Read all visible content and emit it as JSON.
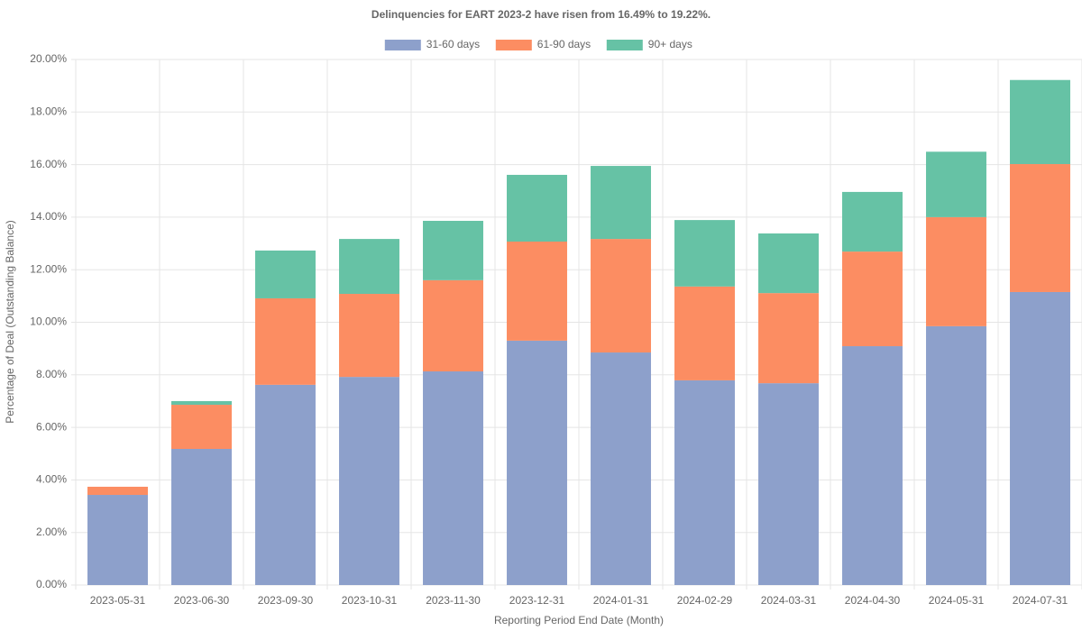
{
  "chart_data": {
    "type": "stacked_bar",
    "title": "Delinquencies for EART 2023-2 have risen from 16.49% to 19.22%.",
    "x_label": "Reporting Period End Date (Month)",
    "y_label": "Percentage of Deal (Outstanding Balance)",
    "categories": [
      "2023-05-31",
      "2023-06-30",
      "2023-09-30",
      "2023-10-31",
      "2023-11-30",
      "2023-12-31",
      "2024-01-31",
      "2024-02-29",
      "2024-03-31",
      "2024-04-30",
      "2024-05-31",
      "2024-07-31"
    ],
    "series": [
      {
        "name": "31-60 days",
        "color": "#8da0cb",
        "values": [
          3.43,
          5.18,
          7.62,
          7.92,
          8.13,
          9.3,
          8.85,
          7.79,
          7.68,
          9.09,
          9.85,
          11.15
        ]
      },
      {
        "name": "61-90 days",
        "color": "#fc8d62",
        "values": [
          0.31,
          1.68,
          3.29,
          3.16,
          3.47,
          3.77,
          4.32,
          3.57,
          3.43,
          3.6,
          4.15,
          4.87
        ]
      },
      {
        "name": "90+ days",
        "color": "#66c2a5",
        "values": [
          0,
          0.14,
          1.82,
          2.09,
          2.26,
          2.54,
          2.78,
          2.53,
          2.27,
          2.27,
          2.49,
          3.2
        ]
      }
    ],
    "ylim": [
      0,
      20
    ],
    "yticks": [
      {
        "value": 0,
        "label": "0.00%"
      },
      {
        "value": 2,
        "label": "2.00%"
      },
      {
        "value": 4,
        "label": "4.00%"
      },
      {
        "value": 6,
        "label": "6.00%"
      },
      {
        "value": 8,
        "label": "8.00%"
      },
      {
        "value": 10,
        "label": "10.00%"
      },
      {
        "value": 12,
        "label": "12.00%"
      },
      {
        "value": 14,
        "label": "14.00%"
      },
      {
        "value": 16,
        "label": "16.00%"
      },
      {
        "value": 18,
        "label": "18.00%"
      },
      {
        "value": 20,
        "label": "20.00%"
      }
    ],
    "grid": true,
    "legend": "top"
  }
}
